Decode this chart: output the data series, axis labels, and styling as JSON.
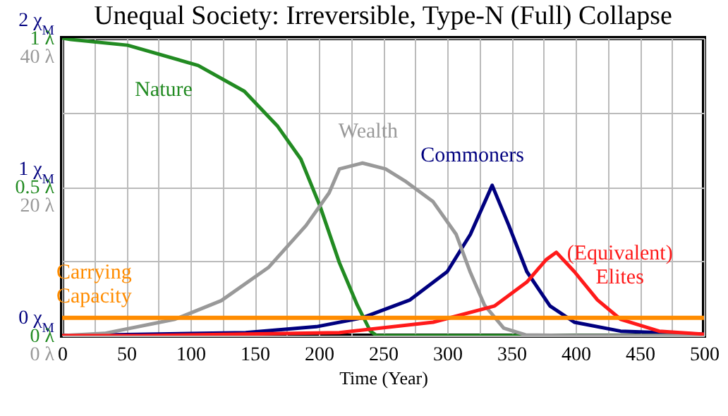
{
  "chart_data": {
    "type": "line",
    "title": "Unequal Society: Irreversible, Type-N (Full) Collapse",
    "xlabel": "Time (Year)",
    "xlim": [
      0,
      500
    ],
    "xticks": [
      0,
      {
        "value": 25,
        "label": null
      },
      50,
      {
        "value": 75,
        "label": null
      },
      100,
      {
        "value": 125,
        "label": null
      },
      150,
      {
        "value": 175,
        "label": null
      },
      200,
      {
        "value": 225,
        "label": null
      },
      250,
      {
        "value": 275,
        "label": null
      },
      300,
      {
        "value": 325,
        "label": null
      },
      350,
      {
        "value": 375,
        "label": null
      },
      400,
      {
        "value": 425,
        "label": null
      },
      450,
      {
        "value": 475,
        "label": null
      },
      500
    ],
    "ylim": [
      0,
      2
    ],
    "yticks": [
      {
        "value": 0,
        "label": "0 χ$_{M}$"
      },
      {
        "value": 0.5,
        "label": null
      },
      {
        "value": 1,
        "label": "1 χ$_{M}$"
      },
      {
        "value": 1.5,
        "label": null
      },
      {
        "value": 2,
        "label": "2 χ$_{M}$"
      }
    ],
    "y2lim": [
      0,
      1
    ],
    "y2ticks": [
      {
        "value": 0,
        "label": "0 λ"
      },
      {
        "value": 0.5,
        "label": "0.5 λ"
      },
      {
        "value": 1,
        "label": "1 λ"
      }
    ],
    "y3lim": [
      0,
      40
    ],
    "y3ticks": [
      {
        "value": 0,
        "label": "0 λ"
      },
      {
        "value": 20,
        "label": "20 λ"
      },
      {
        "value": 40,
        "label": "40 λ"
      }
    ],
    "grid": true,
    "series": [
      {
        "name": "Commoners",
        "color": "#00007f",
        "x": [
          0,
          143,
          198,
          234,
          271,
          300,
          318,
          335,
          348,
          362,
          380,
          399,
          435,
          500
        ],
        "values": [
          0,
          0.02,
          0.06,
          0.12,
          0.24,
          0.43,
          0.68,
          1.01,
          0.74,
          0.43,
          0.2,
          0.09,
          0.03,
          0.01
        ]
      },
      {
        "name": "Nature",
        "color": "#228b22",
        "axis": "y2",
        "x": [
          0,
          7,
          51,
          106,
          142,
          168,
          186,
          201,
          216,
          230,
          240,
          245,
          300,
          400,
          500
        ],
        "values": [
          1,
          0.995,
          0.976,
          0.908,
          0.821,
          0.703,
          0.593,
          0.434,
          0.245,
          0.102,
          0.016,
          0,
          0,
          0,
          0
        ]
      },
      {
        "name": "Wealth",
        "color": "#999999",
        "axis": "y3",
        "x": [
          0,
          33,
          88,
          124,
          161,
          190,
          208,
          216,
          234,
          252,
          267,
          289,
          307,
          318,
          329,
          344,
          361,
          400,
          500
        ],
        "values": [
          0,
          0.3,
          2.2,
          4.7,
          9.2,
          14.8,
          19.2,
          22.4,
          23.2,
          22.4,
          20.8,
          18,
          13.6,
          8.5,
          4.1,
          1,
          0.1,
          0,
          0
        ]
      },
      {
        "name": "(Equivalent) Elites",
        "color": "#ff1a1a",
        "x": [
          0,
          62,
          216,
          289,
          337,
          362,
          377,
          385,
          399,
          417,
          435,
          465,
          500
        ],
        "values": [
          0,
          0,
          0.02,
          0.09,
          0.2,
          0.36,
          0.51,
          0.56,
          0.43,
          0.24,
          0.11,
          0.03,
          0.01
        ]
      }
    ],
    "ref_lines": [
      {
        "axis": "y",
        "value": 0.12,
        "label": "Carrying Capacity",
        "color": "#ff8c00"
      }
    ]
  }
}
